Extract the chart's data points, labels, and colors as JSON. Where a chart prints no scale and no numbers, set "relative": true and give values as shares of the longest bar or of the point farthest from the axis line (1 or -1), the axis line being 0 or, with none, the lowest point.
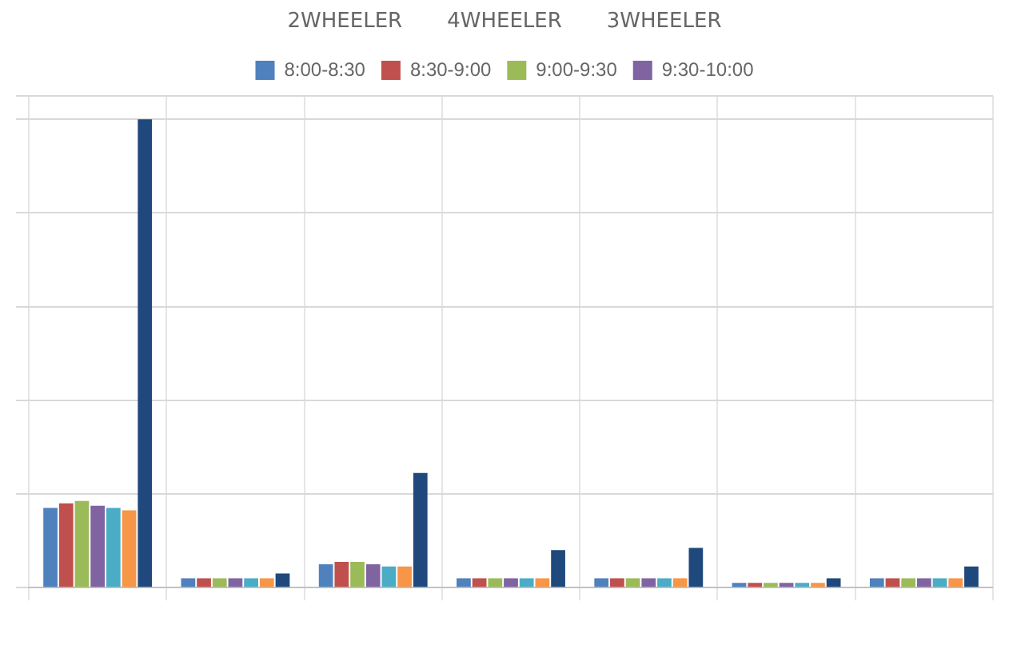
{
  "chart_data": {
    "type": "bar",
    "relative": true,
    "grid": true,
    "legend": "top",
    "categories": [
      null,
      null,
      null,
      null,
      null,
      null,
      null
    ],
    "series": [
      {
        "name": "8:00-8:30",
        "color": "#4f81bd",
        "values": [
          0.17,
          0.02,
          0.05,
          0.02,
          0.02,
          0.01,
          0.02
        ]
      },
      {
        "name": "8:30-9:00",
        "color": "#c0504d",
        "values": [
          0.18,
          0.02,
          0.055,
          0.02,
          0.02,
          0.01,
          0.02
        ]
      },
      {
        "name": "9:00-9:30",
        "color": "#9bbb59",
        "values": [
          0.185,
          0.02,
          0.055,
          0.02,
          0.02,
          0.01,
          0.02
        ]
      },
      {
        "name": "9:30-10:00",
        "color": "#8064a2",
        "values": [
          0.175,
          0.02,
          0.05,
          0.02,
          0.02,
          0.01,
          0.02
        ]
      },
      {
        "color": "#4bacc6",
        "values": [
          0.17,
          0.02,
          0.045,
          0.02,
          0.02,
          0.01,
          0.02
        ]
      },
      {
        "color": "#f79646",
        "values": [
          0.165,
          0.02,
          0.045,
          0.02,
          0.02,
          0.01,
          0.02
        ]
      },
      {
        "color": "#1f497d",
        "values": [
          1,
          0.03,
          0.245,
          0.08,
          0.085,
          0.02,
          0.045
        ]
      }
    ],
    "annotations": [
      "2WHEELER",
      "4WHEELER",
      "3WHEELER"
    ]
  }
}
